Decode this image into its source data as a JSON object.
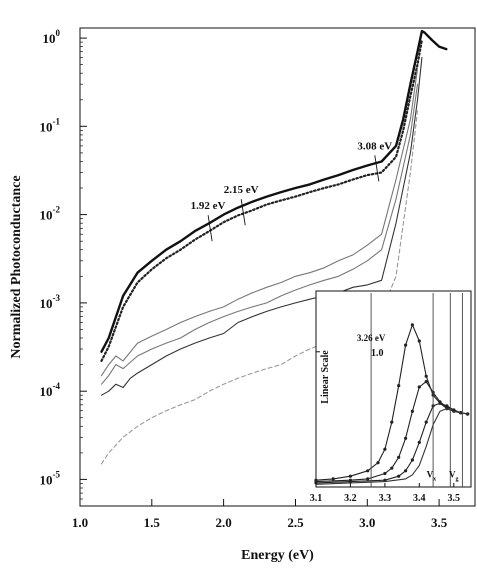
{
  "chart_data": [
    {
      "type": "line",
      "xlabel": "Energy (eV)",
      "ylabel": "Normalized Photoconductance",
      "xlim": [
        1.0,
        3.75
      ],
      "ylim": [
        5e-06,
        1.3
      ],
      "yscale": "log",
      "x_ticks": [
        1.0,
        1.5,
        2.0,
        2.5,
        3.0,
        3.5
      ],
      "x_tick_labels": [
        "1.0",
        "1.5",
        "2.0",
        "2.5",
        "3.0",
        "3.5"
      ],
      "y_ticks": [
        1e-05,
        0.0001,
        0.001,
        0.01,
        0.1,
        1
      ],
      "y_tick_labels": [
        "10",
        "10",
        "10",
        "10",
        "10",
        "10"
      ],
      "y_tick_exponents": [
        "-5",
        "-4",
        "-3",
        "-2",
        "-1",
        "0"
      ],
      "annotations": [
        {
          "text": "1.92 eV",
          "x": 1.92,
          "y": 0.0115
        },
        {
          "text": "2.15 eV",
          "x": 2.15,
          "y": 0.0175
        },
        {
          "text": "3.08 eV",
          "x": 3.08,
          "y": 0.055
        }
      ],
      "series": [
        {
          "style": "solid-thick",
          "x": [
            1.15,
            1.2,
            1.3,
            1.4,
            1.5,
            1.6,
            1.7,
            1.8,
            1.9,
            2.0,
            2.1,
            2.2,
            2.3,
            2.4,
            2.5,
            2.6,
            2.7,
            2.8,
            2.9,
            3.0,
            3.1,
            3.2,
            3.25,
            3.3,
            3.35,
            3.38,
            3.4,
            3.45,
            3.5,
            3.55
          ],
          "y": [
            0.00028,
            0.0004,
            0.0012,
            0.0022,
            0.003,
            0.004,
            0.005,
            0.0065,
            0.008,
            0.01,
            0.012,
            0.014,
            0.016,
            0.018,
            0.02,
            0.022,
            0.025,
            0.028,
            0.032,
            0.036,
            0.04,
            0.06,
            0.12,
            0.3,
            0.7,
            1.2,
            1.15,
            0.95,
            0.8,
            0.75
          ]
        },
        {
          "style": "dotted-thick",
          "x": [
            1.15,
            1.2,
            1.3,
            1.4,
            1.5,
            1.6,
            1.7,
            1.8,
            1.9,
            2.0,
            2.1,
            2.2,
            2.3,
            2.4,
            2.5,
            2.6,
            2.7,
            2.8,
            2.9,
            3.0,
            3.1,
            3.2,
            3.25,
            3.3,
            3.35,
            3.38
          ],
          "y": [
            0.00022,
            0.00032,
            0.0009,
            0.0017,
            0.0024,
            0.0032,
            0.004,
            0.0052,
            0.0065,
            0.0082,
            0.0098,
            0.0112,
            0.013,
            0.0145,
            0.016,
            0.018,
            0.02,
            0.022,
            0.025,
            0.028,
            0.03,
            0.045,
            0.09,
            0.22,
            0.5,
            0.95
          ]
        },
        {
          "style": "solid-thin",
          "x": [
            1.15,
            1.2,
            1.25,
            1.3,
            1.35,
            1.4,
            1.5,
            1.6,
            1.7,
            1.8,
            1.9,
            2.0,
            2.1,
            2.2,
            2.3,
            2.4,
            2.5,
            2.6,
            2.7,
            2.8,
            2.9,
            3.0,
            3.1,
            3.2,
            3.3,
            3.35,
            3.38
          ],
          "y": [
            9e-05,
            0.0001,
            0.00012,
            0.00011,
            0.00014,
            0.00016,
            0.0002,
            0.00025,
            0.0003,
            0.00035,
            0.0004,
            0.00045,
            0.0006,
            0.0007,
            0.0008,
            0.0009,
            0.001,
            0.0011,
            0.0012,
            0.0013,
            0.0015,
            0.0016,
            0.0018,
            0.008,
            0.05,
            0.2,
            0.6
          ]
        },
        {
          "style": "solid-gray",
          "x": [
            1.15,
            1.2,
            1.25,
            1.3,
            1.4,
            1.5,
            1.6,
            1.7,
            1.8,
            1.9,
            2.0,
            2.1,
            2.2,
            2.3,
            2.4,
            2.5,
            2.6,
            2.7,
            2.8,
            2.9,
            3.0,
            3.1,
            3.2,
            3.3,
            3.35
          ],
          "y": [
            0.00012,
            0.00015,
            0.0002,
            0.00018,
            0.00025,
            0.0003,
            0.00035,
            0.0004,
            0.0005,
            0.0006,
            0.0007,
            0.0008,
            0.0009,
            0.001,
            0.0012,
            0.0014,
            0.0016,
            0.0018,
            0.002,
            0.0024,
            0.003,
            0.004,
            0.015,
            0.08,
            0.3
          ]
        },
        {
          "style": "solid-gray",
          "x": [
            1.15,
            1.2,
            1.25,
            1.3,
            1.4,
            1.5,
            1.6,
            1.7,
            1.8,
            1.9,
            2.0,
            2.1,
            2.2,
            2.3,
            2.4,
            2.5,
            2.6,
            2.7,
            2.8,
            2.9,
            3.0,
            3.1,
            3.2,
            3.3,
            3.35
          ],
          "y": [
            0.00015,
            0.0002,
            0.00025,
            0.00022,
            0.00035,
            0.00042,
            0.0005,
            0.0006,
            0.0007,
            0.0008,
            0.0009,
            0.0011,
            0.0013,
            0.0015,
            0.0017,
            0.002,
            0.0022,
            0.0025,
            0.003,
            0.0035,
            0.0045,
            0.006,
            0.025,
            0.12,
            0.45
          ]
        },
        {
          "style": "dashed-gray",
          "x": [
            1.15,
            1.2,
            1.3,
            1.4,
            1.5,
            1.6,
            1.7,
            1.8,
            1.9,
            2.0,
            2.1,
            2.2,
            2.3,
            2.4,
            2.5,
            2.6,
            2.7,
            2.8,
            2.9,
            3.0,
            3.1,
            3.2,
            3.3,
            3.35
          ],
          "y": [
            1.5e-05,
            2e-05,
            3e-05,
            4e-05,
            5e-05,
            6e-05,
            7e-05,
            8e-05,
            0.0001,
            0.00012,
            0.00014,
            0.00016,
            0.00018,
            0.0002,
            0.00025,
            0.0003,
            0.00035,
            0.0004,
            0.0005,
            0.0006,
            0.0008,
            0.002,
            0.03,
            0.15
          ]
        }
      ]
    },
    {
      "type": "line",
      "ylabel": "Linear Scale",
      "xlim": [
        3.1,
        3.55
      ],
      "ylim": [
        0,
        1.45
      ],
      "yscale": "linear",
      "x_ticks": [
        3.1,
        3.2,
        3.3,
        3.4,
        3.5
      ],
      "x_tick_labels": [
        "3.1",
        "3.2",
        "3.3",
        "3.4",
        "3.5"
      ],
      "y_ticks": [
        1.0
      ],
      "y_tick_labels": [
        "1.0"
      ],
      "annotations": [
        {
          "text": "3.26 eV",
          "x": 3.26,
          "y": 1.08
        },
        {
          "text": "V",
          "sub": "x",
          "x": 3.435,
          "y": 0.07
        },
        {
          "text": "V",
          "sub": "g",
          "x": 3.5,
          "y": 0.07
        }
      ],
      "vertical_lines": [
        3.26,
        3.44,
        3.49,
        3.525
      ],
      "series": [
        {
          "style": "solid-markers",
          "x": [
            3.1,
            3.15,
            3.2,
            3.25,
            3.28,
            3.3,
            3.32,
            3.34,
            3.36,
            3.38,
            3.4,
            3.42,
            3.44,
            3.46,
            3.48,
            3.5,
            3.52,
            3.54
          ],
          "y": [
            0.05,
            0.06,
            0.08,
            0.12,
            0.18,
            0.28,
            0.48,
            0.75,
            1.05,
            1.2,
            1.08,
            0.82,
            0.68,
            0.62,
            0.58,
            0.56,
            0.55,
            0.54
          ]
        },
        {
          "style": "solid-markers",
          "x": [
            3.1,
            3.2,
            3.25,
            3.3,
            3.32,
            3.34,
            3.36,
            3.38,
            3.4,
            3.42,
            3.44,
            3.46,
            3.48,
            3.5,
            3.52,
            3.54
          ],
          "y": [
            0.04,
            0.05,
            0.06,
            0.1,
            0.14,
            0.22,
            0.36,
            0.56,
            0.74,
            0.78,
            0.7,
            0.63,
            0.59,
            0.57,
            0.55,
            0.54
          ]
        },
        {
          "style": "solid-markers",
          "x": [
            3.1,
            3.2,
            3.3,
            3.34,
            3.36,
            3.38,
            3.4,
            3.42,
            3.44,
            3.46,
            3.48,
            3.5,
            3.52,
            3.54
          ],
          "y": [
            0.03,
            0.04,
            0.05,
            0.08,
            0.12,
            0.2,
            0.33,
            0.48,
            0.6,
            0.62,
            0.6,
            0.57,
            0.55,
            0.54
          ]
        },
        {
          "style": "solid-thin",
          "x": [
            3.1,
            3.2,
            3.3,
            3.36,
            3.38,
            3.4,
            3.42,
            3.44,
            3.46,
            3.48,
            3.5,
            3.52,
            3.54
          ],
          "y": [
            0.02,
            0.03,
            0.04,
            0.06,
            0.09,
            0.16,
            0.3,
            0.46,
            0.56,
            0.58,
            0.56,
            0.55,
            0.54
          ]
        }
      ]
    }
  ]
}
